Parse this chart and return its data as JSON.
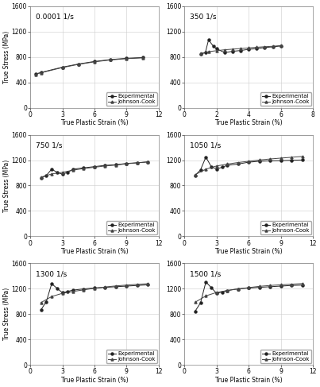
{
  "panels": [
    {
      "title": "0.0001 1/s",
      "xlim": [
        0,
        12
      ],
      "ylim": [
        0,
        1600
      ],
      "xticks": [
        0,
        3,
        6,
        9,
        12
      ],
      "yticks": [
        0,
        400,
        800,
        1200,
        1600
      ],
      "exp_x": [
        0.5,
        1.0,
        3.0,
        4.5,
        6.0,
        7.5,
        9.0,
        10.5
      ],
      "exp_y": [
        530,
        555,
        638,
        688,
        728,
        758,
        778,
        790
      ],
      "jc_x": [
        0.5,
        1.0,
        3.0,
        4.5,
        6.0,
        7.5,
        9.0,
        10.5
      ],
      "jc_y": [
        525,
        550,
        632,
        682,
        722,
        752,
        772,
        784
      ]
    },
    {
      "title": "350 1/s",
      "xlim": [
        0,
        8
      ],
      "ylim": [
        0,
        1600
      ],
      "xticks": [
        0,
        2,
        4,
        6,
        8
      ],
      "yticks": [
        0,
        400,
        800,
        1200,
        1600
      ],
      "exp_x": [
        1.0,
        1.3,
        1.5,
        1.8,
        2.0,
        2.5,
        3.0,
        3.5,
        4.0,
        4.5,
        5.0,
        5.5,
        6.0
      ],
      "exp_y": [
        840,
        868,
        1068,
        968,
        928,
        868,
        888,
        900,
        920,
        930,
        948,
        958,
        972
      ],
      "jc_x": [
        1.0,
        1.5,
        2.0,
        2.5,
        3.0,
        3.5,
        4.0,
        4.5,
        5.0,
        5.5,
        6.0
      ],
      "jc_y": [
        855,
        882,
        898,
        912,
        922,
        932,
        942,
        952,
        960,
        968,
        978
      ]
    },
    {
      "title": "750 1/s",
      "xlim": [
        0,
        12
      ],
      "ylim": [
        0,
        1600
      ],
      "xticks": [
        0,
        3,
        6,
        9,
        12
      ],
      "yticks": [
        0,
        400,
        800,
        1200,
        1600
      ],
      "exp_x": [
        1.0,
        1.5,
        2.0,
        2.5,
        3.0,
        3.5,
        4.0,
        5.0,
        6.0,
        7.0,
        8.0,
        9.0,
        10.0,
        11.0
      ],
      "exp_y": [
        920,
        958,
        1058,
        1008,
        978,
        1008,
        1058,
        1078,
        1098,
        1118,
        1128,
        1148,
        1158,
        1172
      ],
      "jc_x": [
        1.0,
        2.0,
        3.0,
        4.0,
        5.0,
        6.0,
        7.0,
        8.0,
        9.0,
        10.0,
        11.0
      ],
      "jc_y": [
        932,
        982,
        1008,
        1042,
        1068,
        1088,
        1108,
        1122,
        1142,
        1158,
        1172
      ]
    },
    {
      "title": "1050 1/s",
      "xlim": [
        0,
        12
      ],
      "ylim": [
        0,
        1600
      ],
      "xticks": [
        0,
        3,
        6,
        9,
        12
      ],
      "yticks": [
        0,
        400,
        800,
        1200,
        1600
      ],
      "exp_x": [
        1.0,
        1.5,
        2.0,
        2.5,
        3.0,
        3.5,
        4.0,
        5.0,
        6.0,
        7.0,
        8.0,
        9.0,
        10.0,
        11.0
      ],
      "exp_y": [
        958,
        1048,
        1248,
        1098,
        1058,
        1088,
        1118,
        1138,
        1168,
        1182,
        1188,
        1192,
        1198,
        1202
      ],
      "jc_x": [
        1.0,
        2.0,
        3.0,
        4.0,
        5.0,
        6.0,
        7.0,
        8.0,
        9.0,
        10.0,
        11.0
      ],
      "jc_y": [
        972,
        1058,
        1108,
        1138,
        1162,
        1182,
        1202,
        1218,
        1232,
        1245,
        1258
      ]
    },
    {
      "title": "1300 1/s",
      "xlim": [
        0,
        12
      ],
      "ylim": [
        0,
        1600
      ],
      "xticks": [
        0,
        3,
        6,
        9,
        12
      ],
      "yticks": [
        0,
        400,
        800,
        1200,
        1600
      ],
      "exp_x": [
        1.0,
        1.5,
        2.0,
        2.5,
        3.0,
        3.5,
        4.0,
        5.0,
        6.0,
        7.0,
        8.0,
        9.0,
        10.0,
        11.0
      ],
      "exp_y": [
        868,
        998,
        1278,
        1208,
        1138,
        1158,
        1178,
        1198,
        1212,
        1222,
        1232,
        1242,
        1252,
        1262
      ],
      "jc_x": [
        1.0,
        2.0,
        3.0,
        4.0,
        5.0,
        6.0,
        7.0,
        8.0,
        9.0,
        10.0,
        11.0
      ],
      "jc_y": [
        982,
        1078,
        1128,
        1158,
        1182,
        1208,
        1228,
        1245,
        1258,
        1270,
        1280
      ]
    },
    {
      "title": "1500 1/s",
      "xlim": [
        0,
        12
      ],
      "ylim": [
        0,
        1600
      ],
      "xticks": [
        0,
        3,
        6,
        9,
        12
      ],
      "yticks": [
        0,
        400,
        800,
        1200,
        1600
      ],
      "exp_x": [
        1.0,
        1.5,
        2.0,
        2.5,
        3.0,
        3.5,
        4.0,
        5.0,
        6.0,
        7.0,
        8.0,
        9.0,
        10.0,
        11.0
      ],
      "exp_y": [
        848,
        978,
        1308,
        1218,
        1128,
        1148,
        1172,
        1198,
        1212,
        1222,
        1232,
        1242,
        1252,
        1258
      ],
      "jc_x": [
        1.0,
        2.0,
        3.0,
        4.0,
        5.0,
        6.0,
        7.0,
        8.0,
        9.0,
        10.0,
        11.0
      ],
      "jc_y": [
        988,
        1088,
        1142,
        1172,
        1198,
        1218,
        1238,
        1252,
        1262,
        1272,
        1282
      ]
    }
  ],
  "xlabel": "True Plastic Strain (%)",
  "ylabel": "True Stress (MPa)",
  "legend_labels": [
    "Experimental",
    "Johnson-Cook"
  ],
  "exp_marker": "o",
  "jc_marker": "^",
  "exp_color": "#222222",
  "jc_color": "#444444",
  "linewidth": 0.7,
  "markersize": 2.2,
  "fontsize_title": 6.5,
  "fontsize_label": 5.5,
  "fontsize_tick": 5.5,
  "fontsize_legend": 5.0,
  "grid_color": "#cccccc",
  "background_color": "#ffffff"
}
